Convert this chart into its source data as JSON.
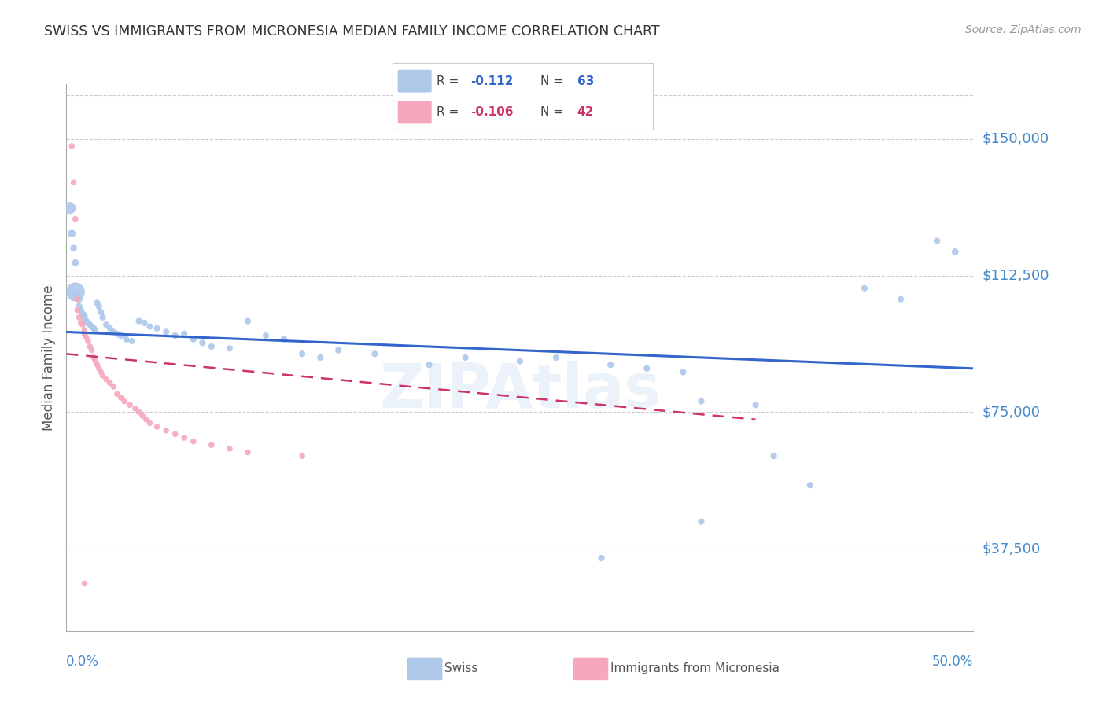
{
  "title": "SWISS VS IMMIGRANTS FROM MICRONESIA MEDIAN FAMILY INCOME CORRELATION CHART",
  "source": "Source: ZipAtlas.com",
  "ylabel": "Median Family Income",
  "watermark": "ZIPAtlas",
  "xmin": 0.0,
  "xmax": 0.5,
  "ymin": 15000,
  "ymax": 165000,
  "yticks": [
    37500,
    75000,
    112500,
    150000
  ],
  "ytick_labels": [
    "$37,500",
    "$75,000",
    "$112,500",
    "$150,000"
  ],
  "swiss_color": "#adc8e8",
  "micronesia_color": "#f5a8bb",
  "swiss_line_color": "#3366cc",
  "micronesia_line_color": "#cc3366",
  "title_color": "#333333",
  "tick_label_color": "#4488cc",
  "swiss_points": [
    [
      0.002,
      131000,
      120
    ],
    [
      0.003,
      124000,
      50
    ],
    [
      0.004,
      120000,
      40
    ],
    [
      0.005,
      116000,
      40
    ],
    [
      0.005,
      108000,
      300
    ],
    [
      0.006,
      107000,
      40
    ],
    [
      0.007,
      106000,
      40
    ],
    [
      0.007,
      104000,
      40
    ],
    [
      0.008,
      103000,
      35
    ],
    [
      0.009,
      102000,
      35
    ],
    [
      0.01,
      101500,
      35
    ],
    [
      0.01,
      100500,
      35
    ],
    [
      0.011,
      100000,
      35
    ],
    [
      0.012,
      99500,
      35
    ],
    [
      0.013,
      99000,
      35
    ],
    [
      0.014,
      98500,
      35
    ],
    [
      0.015,
      98000,
      35
    ],
    [
      0.016,
      97500,
      35
    ],
    [
      0.017,
      105000,
      35
    ],
    [
      0.018,
      104000,
      35
    ],
    [
      0.019,
      102500,
      35
    ],
    [
      0.02,
      101000,
      35
    ],
    [
      0.022,
      99000,
      35
    ],
    [
      0.024,
      98000,
      35
    ],
    [
      0.026,
      97000,
      35
    ],
    [
      0.028,
      96500,
      35
    ],
    [
      0.03,
      96000,
      35
    ],
    [
      0.033,
      95000,
      35
    ],
    [
      0.036,
      94500,
      35
    ],
    [
      0.04,
      100000,
      35
    ],
    [
      0.043,
      99500,
      35
    ],
    [
      0.046,
      98500,
      35
    ],
    [
      0.05,
      98000,
      35
    ],
    [
      0.055,
      97000,
      35
    ],
    [
      0.06,
      96000,
      35
    ],
    [
      0.065,
      96500,
      35
    ],
    [
      0.07,
      95000,
      35
    ],
    [
      0.075,
      94000,
      35
    ],
    [
      0.08,
      93000,
      35
    ],
    [
      0.09,
      92500,
      35
    ],
    [
      0.1,
      100000,
      35
    ],
    [
      0.11,
      96000,
      35
    ],
    [
      0.12,
      95000,
      35
    ],
    [
      0.13,
      91000,
      35
    ],
    [
      0.14,
      90000,
      35
    ],
    [
      0.15,
      92000,
      35
    ],
    [
      0.17,
      91000,
      35
    ],
    [
      0.2,
      88000,
      35
    ],
    [
      0.22,
      90000,
      35
    ],
    [
      0.25,
      89000,
      35
    ],
    [
      0.27,
      90000,
      35
    ],
    [
      0.3,
      88000,
      35
    ],
    [
      0.32,
      87000,
      35
    ],
    [
      0.34,
      86000,
      35
    ],
    [
      0.35,
      78000,
      35
    ],
    [
      0.38,
      77000,
      35
    ],
    [
      0.39,
      63000,
      35
    ],
    [
      0.41,
      55000,
      35
    ],
    [
      0.44,
      109000,
      35
    ],
    [
      0.46,
      106000,
      35
    ],
    [
      0.48,
      122000,
      35
    ],
    [
      0.49,
      119000,
      40
    ],
    [
      0.295,
      35000,
      35
    ],
    [
      0.35,
      45000,
      35
    ]
  ],
  "micronesia_points": [
    [
      0.003,
      148000,
      30
    ],
    [
      0.004,
      138000,
      30
    ],
    [
      0.005,
      128000,
      30
    ],
    [
      0.006,
      106000,
      30
    ],
    [
      0.006,
      103000,
      30
    ],
    [
      0.007,
      101000,
      30
    ],
    [
      0.008,
      99500,
      30
    ],
    [
      0.009,
      99000,
      30
    ],
    [
      0.01,
      97500,
      30
    ],
    [
      0.01,
      96500,
      30
    ],
    [
      0.011,
      95500,
      30
    ],
    [
      0.012,
      94500,
      30
    ],
    [
      0.013,
      93000,
      30
    ],
    [
      0.014,
      92000,
      30
    ],
    [
      0.015,
      90000,
      30
    ],
    [
      0.016,
      89000,
      30
    ],
    [
      0.017,
      88000,
      30
    ],
    [
      0.018,
      87000,
      30
    ],
    [
      0.019,
      86000,
      30
    ],
    [
      0.02,
      85000,
      30
    ],
    [
      0.022,
      84000,
      30
    ],
    [
      0.024,
      83000,
      30
    ],
    [
      0.026,
      82000,
      30
    ],
    [
      0.028,
      80000,
      30
    ],
    [
      0.03,
      79000,
      30
    ],
    [
      0.032,
      78000,
      30
    ],
    [
      0.035,
      77000,
      30
    ],
    [
      0.038,
      76000,
      30
    ],
    [
      0.04,
      75000,
      30
    ],
    [
      0.042,
      74000,
      30
    ],
    [
      0.044,
      73000,
      30
    ],
    [
      0.046,
      72000,
      30
    ],
    [
      0.05,
      71000,
      30
    ],
    [
      0.055,
      70000,
      30
    ],
    [
      0.06,
      69000,
      30
    ],
    [
      0.065,
      68000,
      30
    ],
    [
      0.07,
      67000,
      30
    ],
    [
      0.08,
      66000,
      30
    ],
    [
      0.09,
      65000,
      30
    ],
    [
      0.1,
      64000,
      30
    ],
    [
      0.13,
      63000,
      30
    ],
    [
      0.01,
      28000,
      30
    ]
  ],
  "swiss_trendline": [
    [
      0.0,
      97000
    ],
    [
      0.5,
      87000
    ]
  ],
  "micronesia_trendline": [
    [
      0.0,
      91000
    ],
    [
      0.38,
      73000
    ]
  ]
}
